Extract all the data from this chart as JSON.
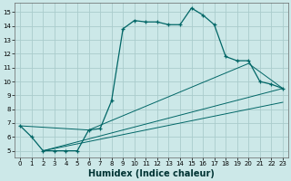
{
  "xlabel": "Humidex (Indice chaleur)",
  "bg_color": "#cce8e8",
  "grid_color": "#aacccc",
  "line_color": "#006666",
  "xlim": [
    -0.5,
    23.5
  ],
  "ylim": [
    4.5,
    15.7
  ],
  "xticks": [
    0,
    1,
    2,
    3,
    4,
    5,
    6,
    7,
    8,
    9,
    10,
    11,
    12,
    13,
    14,
    15,
    16,
    17,
    18,
    19,
    20,
    21,
    22,
    23
  ],
  "yticks": [
    5,
    6,
    7,
    8,
    9,
    10,
    11,
    12,
    13,
    14,
    15
  ],
  "line1_x": [
    0,
    1,
    2,
    3,
    4,
    5,
    6,
    7,
    8,
    9,
    10,
    11,
    12,
    13,
    14,
    15,
    16,
    17,
    18,
    19,
    20,
    21,
    22,
    23
  ],
  "line1_y": [
    6.8,
    6.0,
    5.0,
    5.0,
    5.0,
    5.0,
    6.5,
    6.6,
    8.6,
    13.8,
    14.4,
    14.3,
    14.3,
    14.1,
    14.1,
    15.3,
    14.8,
    14.1,
    11.8,
    11.5,
    11.5,
    10.0,
    9.8,
    9.5
  ],
  "line2_x": [
    0,
    6,
    20,
    23
  ],
  "line2_y": [
    6.8,
    6.5,
    11.3,
    9.5
  ],
  "line3_x": [
    2,
    23
  ],
  "line3_y": [
    5.0,
    9.5
  ],
  "line4_x": [
    2,
    23
  ],
  "line4_y": [
    5.0,
    8.5
  ],
  "xlabel_fontsize": 7,
  "tick_fontsize": 5
}
